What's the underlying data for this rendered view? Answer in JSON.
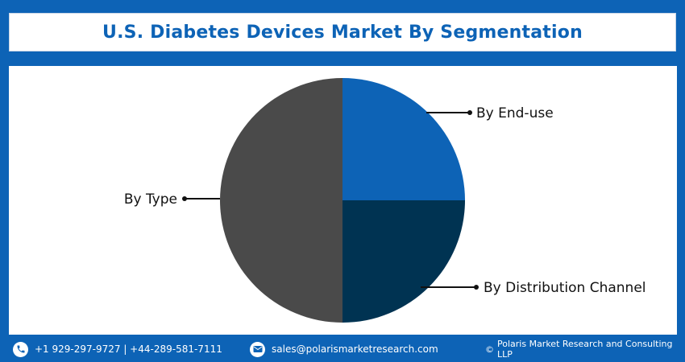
{
  "header": {
    "title": "U.S. Diabetes Devices Market By Segmentation"
  },
  "chart_data": {
    "type": "pie",
    "title": "U.S. Diabetes Devices Market By Segmentation",
    "slices": [
      {
        "label": "By End-use",
        "value": 25,
        "color": "#0d63b6"
      },
      {
        "label": "By Distribution Channel",
        "value": 25,
        "color": "#003352"
      },
      {
        "label": "By Type",
        "value": 50,
        "color": "#4a4a4a"
      }
    ],
    "legend": "none"
  },
  "footer": {
    "phone": "+1 929-297-9727 | +44-289-581-7111",
    "email": "sales@polarismarketresearch.com",
    "copyright": "Polaris Market Research and Consulting LLP",
    "copyright_symbol": "©",
    "phone_icon": "phone-icon",
    "email_icon": "envelope-icon"
  }
}
